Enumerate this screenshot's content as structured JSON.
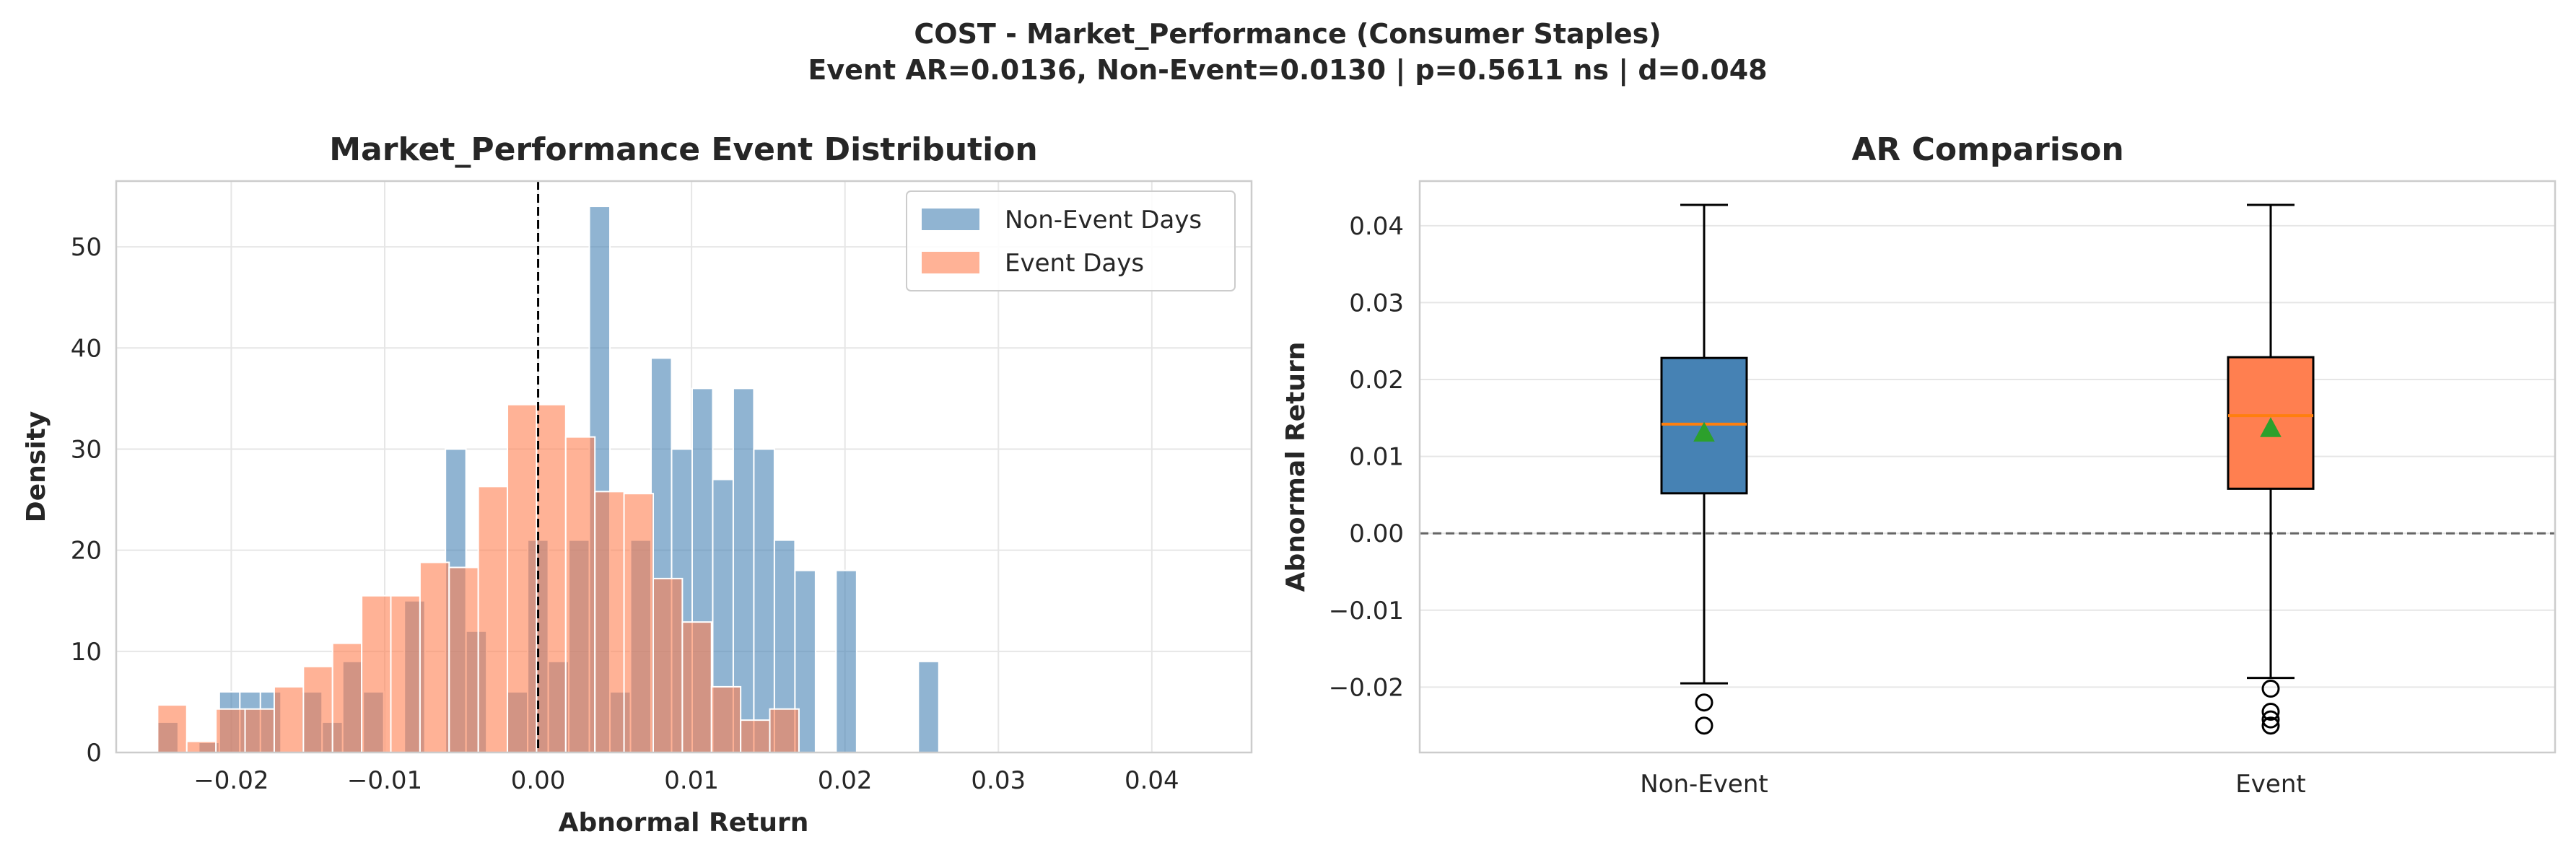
{
  "figure": {
    "suptitle_line1": "COST - Market_Performance (Consumer Staples)",
    "suptitle_line2": "Event AR=0.0136, Non-Event=0.0130 | p=0.5611 ns | d=0.048"
  },
  "chart_data": [
    {
      "type": "histogram",
      "title": "Market_Performance Event Distribution",
      "xlabel": "Abnormal Return",
      "ylabel": "Density",
      "xlim": [
        -0.0275,
        0.0465
      ],
      "ylim": [
        0,
        56.5
      ],
      "xticks": [
        -0.02,
        -0.01,
        0.0,
        0.01,
        0.02,
        0.03,
        0.04
      ],
      "xtick_labels": [
        "−0.02",
        "−0.01",
        "0.00",
        "0.01",
        "0.02",
        "0.03",
        "0.04"
      ],
      "yticks": [
        0,
        10,
        20,
        30,
        40,
        50
      ],
      "ytick_labels": [
        "0",
        "10",
        "20",
        "30",
        "40",
        "50"
      ],
      "grid": true,
      "legend_position": "upper right",
      "reference_line": {
        "x": 0.0,
        "style": "dashed",
        "color": "#000000"
      },
      "series": [
        {
          "name": "Non-Event Days",
          "color": "#4682b4",
          "alpha": 0.6,
          "bin_start": -0.0248,
          "bin_width": 0.00134,
          "values": [
            3,
            0,
            1,
            6,
            6,
            6,
            0,
            6,
            3,
            9,
            6,
            0,
            15,
            0,
            30,
            12,
            0,
            6,
            21,
            9,
            21,
            54,
            6,
            21,
            39,
            30,
            36,
            27,
            36,
            30,
            21,
            18,
            0,
            18,
            0,
            0,
            0,
            9
          ]
        },
        {
          "name": "Event Days",
          "color": "#ff7f50",
          "alpha": 0.6,
          "bin_start": -0.0248,
          "bin_width": 0.0019,
          "values": [
            4.7,
            1.1,
            4.3,
            4.3,
            6.5,
            8.5,
            10.8,
            15.5,
            15.5,
            18.8,
            18.3,
            26.3,
            34.4,
            34.4,
            31.2,
            25.8,
            25.6,
            17.2,
            12.9,
            6.5,
            3.2,
            4.3
          ]
        }
      ]
    },
    {
      "type": "box",
      "title": "AR Comparison",
      "xlabel": "",
      "ylabel": "Abnormal Return",
      "ylim": [
        -0.0285,
        0.0458
      ],
      "yticks": [
        -0.02,
        -0.01,
        0.0,
        0.01,
        0.02,
        0.03,
        0.04
      ],
      "ytick_labels": [
        "−0.02",
        "−0.01",
        "0.00",
        "0.01",
        "0.02",
        "0.03",
        "0.04"
      ],
      "categories": [
        "Non-Event",
        "Event"
      ],
      "grid": true,
      "reference_line": {
        "y": 0.0,
        "style": "dashed",
        "color": "#666666"
      },
      "series": [
        {
          "name": "Non-Event",
          "color": "#4682b4",
          "whisker_low": -0.0195,
          "q1": 0.0052,
          "median": 0.0142,
          "q3": 0.0228,
          "whisker_high": 0.0427,
          "mean": 0.013,
          "outliers": [
            -0.022,
            -0.025
          ]
        },
        {
          "name": "Event",
          "color": "#ff7f50",
          "whisker_low": -0.0188,
          "q1": 0.0058,
          "median": 0.0153,
          "q3": 0.0229,
          "whisker_high": 0.0427,
          "mean": 0.0136,
          "outliers": [
            -0.0202,
            -0.0232,
            -0.0242,
            -0.025
          ]
        }
      ]
    }
  ]
}
